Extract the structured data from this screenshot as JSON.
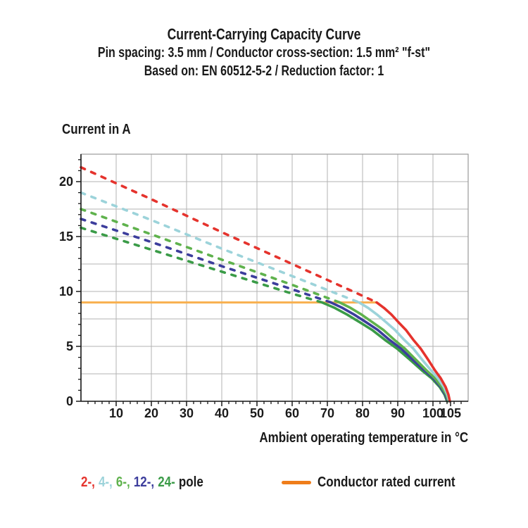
{
  "header": {
    "title": "Current-Carrying Capacity Curve",
    "subtitle1": "Pin spacing: 3.5 mm / Conductor cross-section: 1.5 mm² \"f-st\"",
    "subtitle2": "Based on: EN 60512-5-2 / Reduction factor: 1"
  },
  "chart_data": {
    "type": "line",
    "ylabel": "Current in A",
    "xlabel": "Ambient operating temperature in °C",
    "xlim": [
      0,
      110
    ],
    "ylim": [
      0,
      22.5
    ],
    "x_major_ticks": [
      10,
      20,
      30,
      40,
      50,
      60,
      70,
      80,
      90,
      100,
      105
    ],
    "x_minor_tick_step": 2,
    "y_major_ticks": [
      0,
      5,
      10,
      15,
      20
    ],
    "y_minor_tick_step": 1,
    "x_gridline_step": 10,
    "y_gridline_step": 2.5,
    "grid": true,
    "gridline_color": "#b3b3b3",
    "frame_color": "#999999",
    "axis_color": "#1a1a1a",
    "tick_label_color": "#1a1a1a",
    "series": [
      {
        "name": "2-pole",
        "color": "#e5332d",
        "derating_points": [
          [
            0,
            21.3
          ],
          [
            20,
            18.4
          ],
          [
            40,
            15.4
          ],
          [
            60,
            12.5
          ],
          [
            80,
            9.6
          ],
          [
            84,
            9
          ]
        ],
        "limited_points": [
          [
            84,
            9
          ],
          [
            86.1,
            8.5
          ],
          [
            88.2,
            7.9
          ],
          [
            90.2,
            7.2
          ],
          [
            92.3,
            6.5
          ],
          [
            94.4,
            5.6
          ],
          [
            96.5,
            4.8
          ],
          [
            98.6,
            3.8
          ],
          [
            100.6,
            2.8
          ],
          [
            102.2,
            2.1
          ],
          [
            103.6,
            1.3
          ],
          [
            104.4,
            0.6
          ],
          [
            104.8,
            0
          ]
        ]
      },
      {
        "name": "4-pole",
        "color": "#9cd3da",
        "derating_points": [
          [
            0,
            19
          ],
          [
            20,
            16.5
          ],
          [
            40,
            13.9
          ],
          [
            60,
            11.4
          ],
          [
            79,
            9
          ]
        ],
        "limited_points": [
          [
            79,
            9
          ],
          [
            81.6,
            8.5
          ],
          [
            84.1,
            7.9
          ],
          [
            86.7,
            7.2
          ],
          [
            89.2,
            6.5
          ],
          [
            91.8,
            5.6
          ],
          [
            94.4,
            4.8
          ],
          [
            96.9,
            3.8
          ],
          [
            99.5,
            2.8
          ],
          [
            101.4,
            2.1
          ],
          [
            103.1,
            1.3
          ],
          [
            104.1,
            0.6
          ],
          [
            104.6,
            0
          ]
        ]
      },
      {
        "name": "6-pole",
        "color": "#5fb24d",
        "derating_points": [
          [
            0,
            17.5
          ],
          [
            20,
            15.2
          ],
          [
            40,
            12.9
          ],
          [
            60,
            10.6
          ],
          [
            73.5,
            9
          ]
        ],
        "limited_points": [
          [
            73.5,
            9
          ],
          [
            76.6,
            8.5
          ],
          [
            79.7,
            7.9
          ],
          [
            82.8,
            7.2
          ],
          [
            85.9,
            6.5
          ],
          [
            89,
            5.6
          ],
          [
            92,
            4.8
          ],
          [
            95.1,
            3.8
          ],
          [
            98.2,
            2.8
          ],
          [
            100.5,
            2.1
          ],
          [
            102.5,
            1.3
          ],
          [
            103.8,
            0.6
          ],
          [
            104.4,
            0
          ]
        ]
      },
      {
        "name": "12-pole",
        "color": "#3c3d9c",
        "derating_points": [
          [
            0,
            16.6
          ],
          [
            20,
            14.5
          ],
          [
            40,
            12.3
          ],
          [
            60,
            10.2
          ],
          [
            71,
            9
          ]
        ],
        "limited_points": [
          [
            71,
            9
          ],
          [
            74.3,
            8.5
          ],
          [
            77.6,
            7.9
          ],
          [
            81,
            7.2
          ],
          [
            84.3,
            6.5
          ],
          [
            87.6,
            5.6
          ],
          [
            90.9,
            4.8
          ],
          [
            94.2,
            3.8
          ],
          [
            97.6,
            2.8
          ],
          [
            100.1,
            2.1
          ],
          [
            102.2,
            1.3
          ],
          [
            103.5,
            0.6
          ],
          [
            104.2,
            0
          ]
        ]
      },
      {
        "name": "24-pole",
        "color": "#3a9b47",
        "derating_points": [
          [
            0,
            15.8
          ],
          [
            20,
            13.8
          ],
          [
            40,
            11.8
          ],
          [
            60,
            9.8
          ],
          [
            68.5,
            9
          ]
        ],
        "limited_points": [
          [
            68.5,
            9
          ],
          [
            72.1,
            8.5
          ],
          [
            75.6,
            7.9
          ],
          [
            79.2,
            7.2
          ],
          [
            82.7,
            6.5
          ],
          [
            86.3,
            5.6
          ],
          [
            89.8,
            4.8
          ],
          [
            93.4,
            3.8
          ],
          [
            96.9,
            2.8
          ],
          [
            99.6,
            2.1
          ],
          [
            101.9,
            1.3
          ],
          [
            103.3,
            0.6
          ],
          [
            104,
            0
          ]
        ]
      }
    ],
    "rated_current_line": {
      "label": "Conductor rated current",
      "color": "#f8b04f",
      "value": 9,
      "x_start": 0,
      "x_end": 84
    }
  },
  "legend": {
    "pole_items": [
      {
        "label": "2-,",
        "color": "#e5332d"
      },
      {
        "label": "4-,",
        "color": "#9cd3da"
      },
      {
        "label": "6-,",
        "color": "#5fb24d"
      },
      {
        "label": "12-,",
        "color": "#3c3d9c"
      },
      {
        "label": "24-",
        "color": "#3a9b47"
      }
    ],
    "pole_suffix": "pole",
    "rated_label": "Conductor rated current",
    "rated_color": "#ef7d1a"
  }
}
